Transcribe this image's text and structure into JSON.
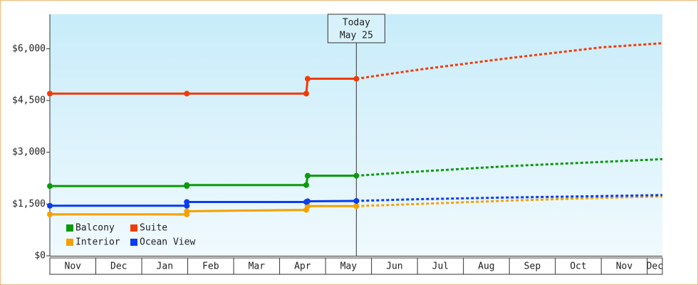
{
  "chart_data": {
    "type": "line",
    "ylim": [
      0,
      7000
    ],
    "yticks": [
      {
        "value": 0,
        "label": "$0"
      },
      {
        "value": 1500,
        "label": "$1,500"
      },
      {
        "value": 3000,
        "label": "$3,000"
      },
      {
        "value": 4500,
        "label": "$4,500"
      },
      {
        "value": 6000,
        "label": "$6,000"
      }
    ],
    "xlim": [
      0,
      13.33
    ],
    "xticks": [
      {
        "value": 0,
        "label": "Nov"
      },
      {
        "value": 1,
        "label": "Dec"
      },
      {
        "value": 2,
        "label": "Jan"
      },
      {
        "value": 3,
        "label": "Feb"
      },
      {
        "value": 4,
        "label": "Mar"
      },
      {
        "value": 5,
        "label": "Apr"
      },
      {
        "value": 6,
        "label": "May"
      },
      {
        "value": 7,
        "label": "Jun"
      },
      {
        "value": 8,
        "label": "Jul"
      },
      {
        "value": 9,
        "label": "Aug"
      },
      {
        "value": 10,
        "label": "Sep"
      },
      {
        "value": 11,
        "label": "Oct"
      },
      {
        "value": 12,
        "label": "Nov"
      },
      {
        "value": 13,
        "label": "Dec"
      }
    ],
    "annotation": {
      "x": 6.67,
      "lines": [
        "Today",
        "May 25"
      ]
    },
    "series": [
      {
        "name": "Balcony",
        "color": "#0a9a0a",
        "x": [
          0,
          2.98,
          2.98,
          5.58,
          5.61,
          6.67
        ],
        "values": [
          2020,
          2020,
          2050,
          2050,
          2320,
          2320
        ],
        "forecast_x": [
          6.67,
          8,
          10,
          12,
          13.33
        ],
        "forecast": [
          2320,
          2440,
          2600,
          2720,
          2800
        ]
      },
      {
        "name": "Suite",
        "color": "#f03c0a",
        "x": [
          0,
          2.98,
          5.58,
          5.61,
          6.67
        ],
        "values": [
          4700,
          4700,
          4700,
          5130,
          5130
        ],
        "forecast_x": [
          6.67,
          8,
          10,
          12,
          13.33
        ],
        "forecast": [
          5130,
          5390,
          5730,
          6040,
          6160
        ]
      },
      {
        "name": "Interior",
        "color": "#f5a000",
        "x": [
          0,
          2.98,
          2.98,
          5.58,
          5.61,
          6.67
        ],
        "values": [
          1200,
          1200,
          1290,
          1330,
          1440,
          1440
        ],
        "forecast_x": [
          6.67,
          8,
          10,
          12,
          13.33
        ],
        "forecast": [
          1440,
          1500,
          1600,
          1680,
          1720
        ]
      },
      {
        "name": "Ocean View",
        "color": "#0a3cf0",
        "x": [
          0,
          2.98,
          2.98,
          5.58,
          5.61,
          6.67
        ],
        "values": [
          1450,
          1450,
          1560,
          1560,
          1580,
          1590
        ],
        "forecast_x": [
          6.67,
          8,
          10,
          12,
          13.33
        ],
        "forecast": [
          1590,
          1640,
          1690,
          1730,
          1760
        ]
      }
    ]
  }
}
